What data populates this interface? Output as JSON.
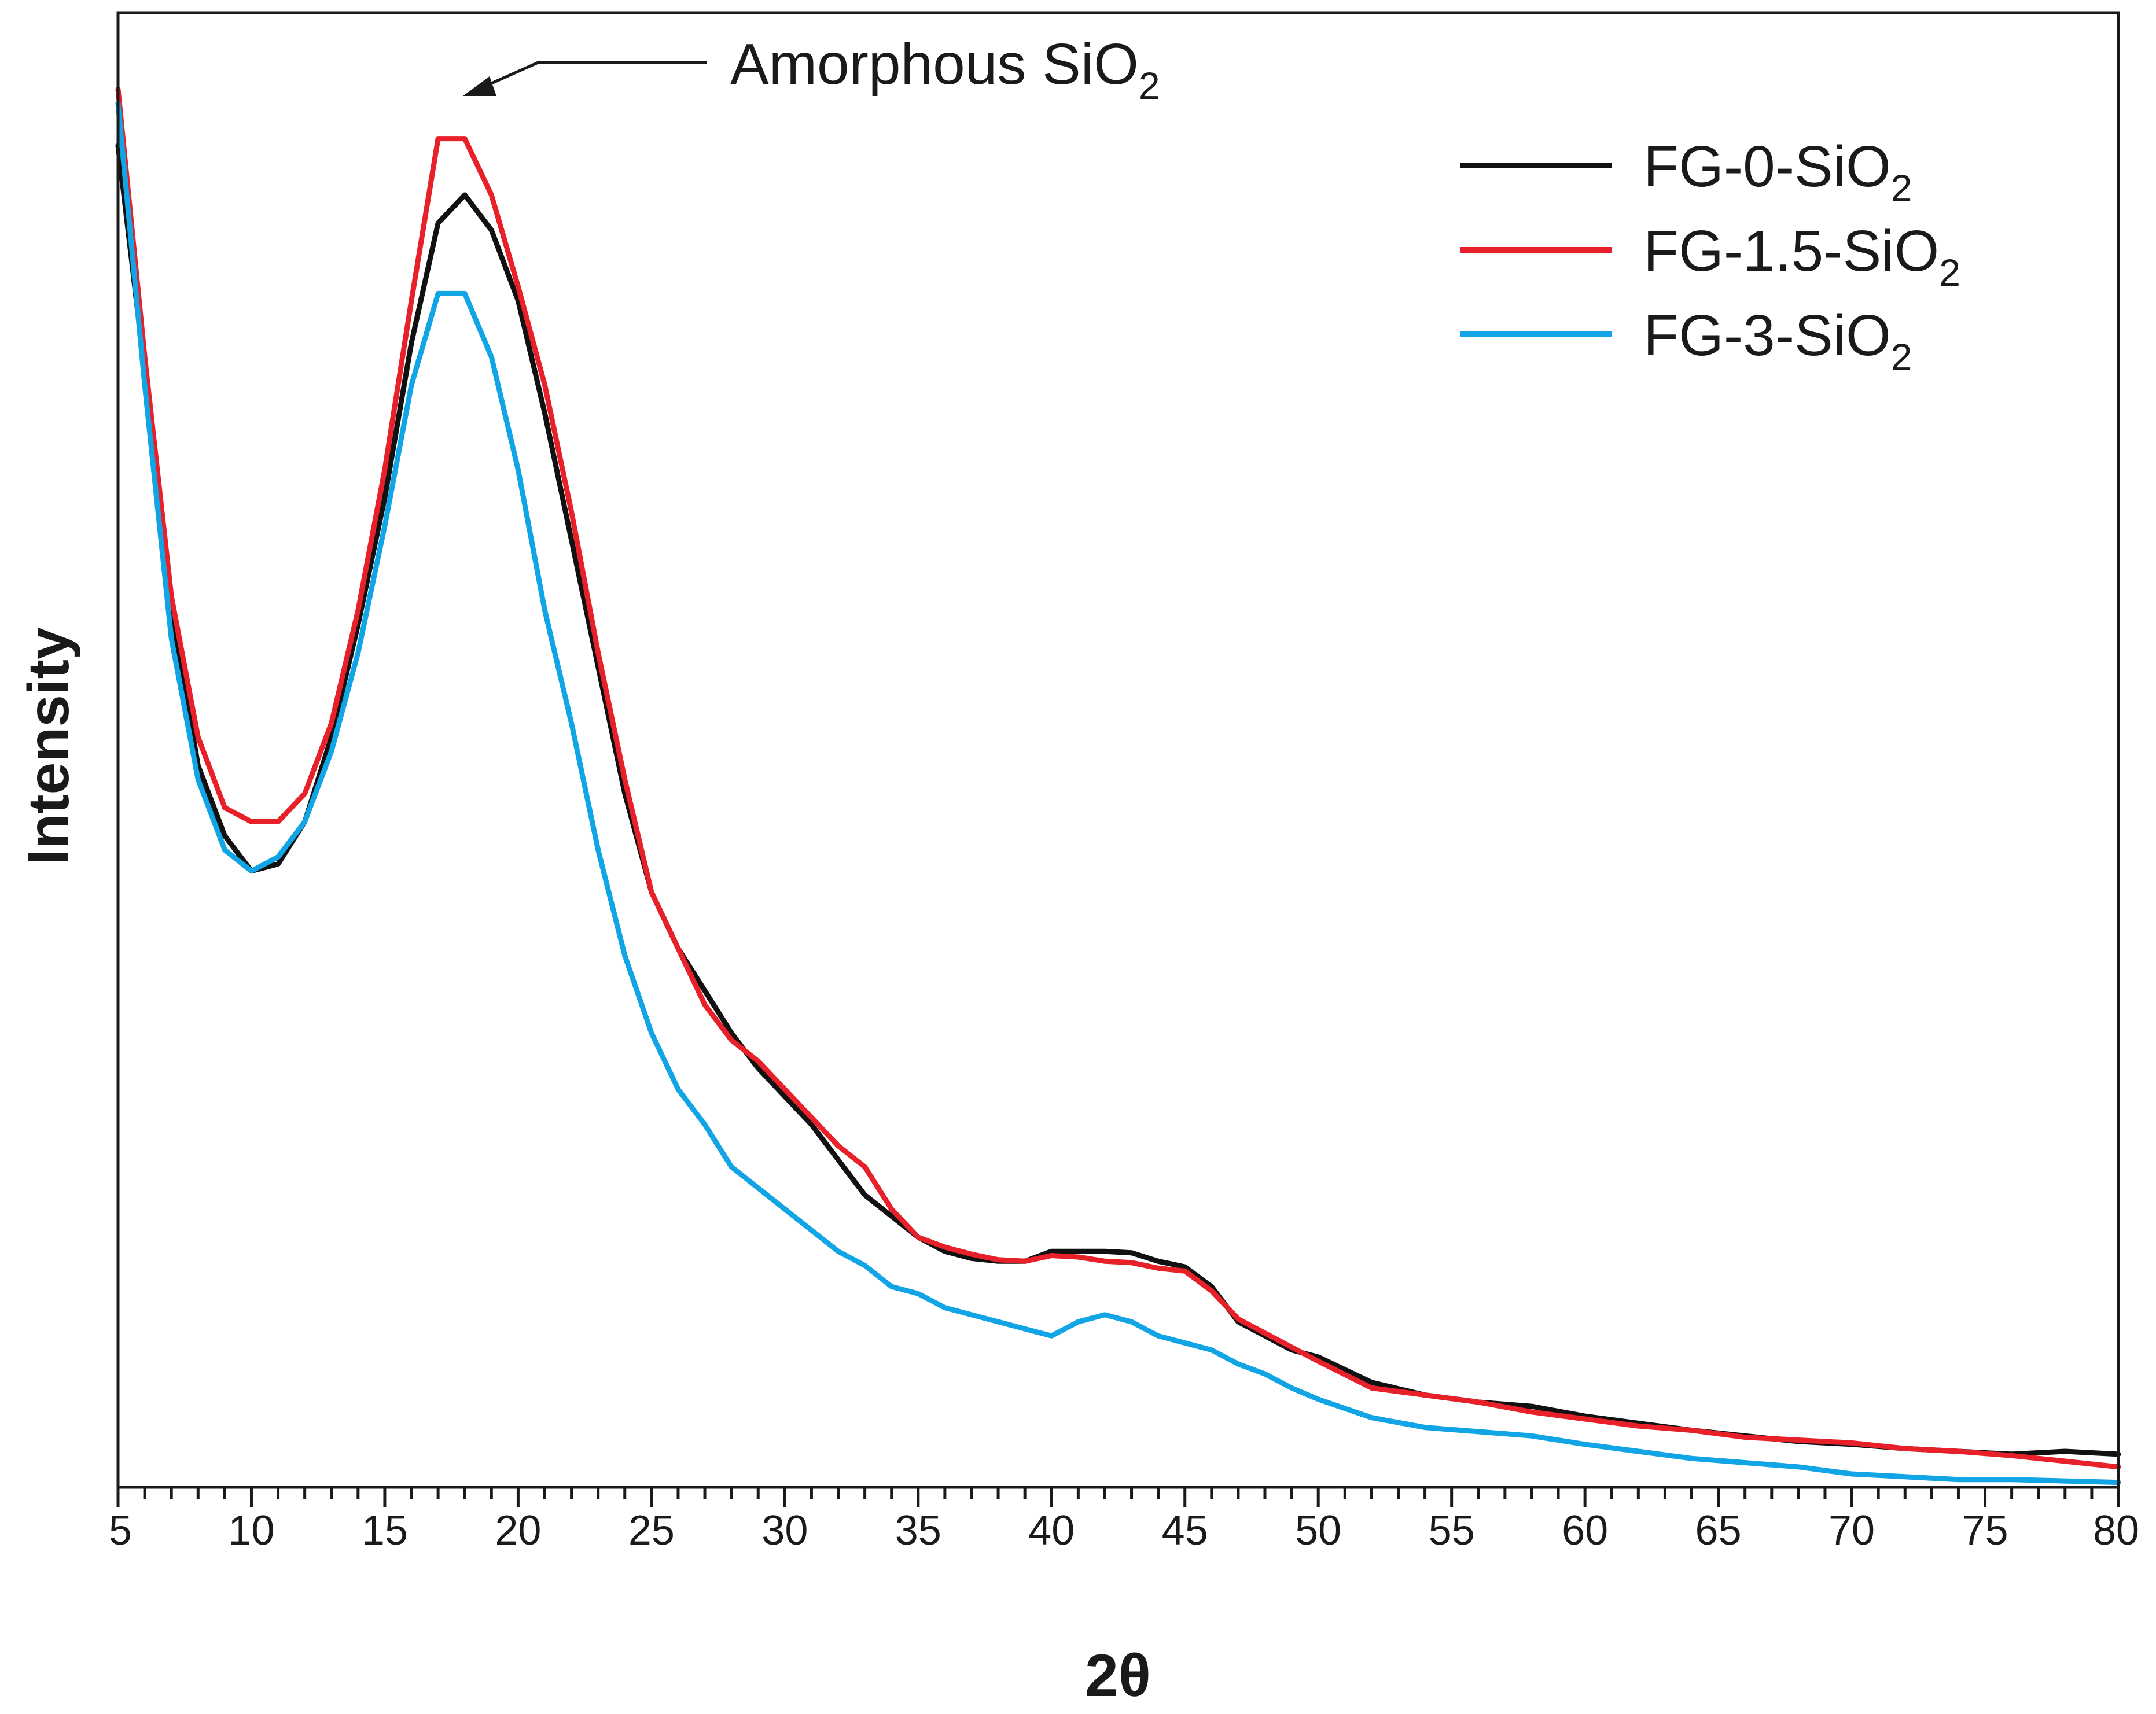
{
  "chart_data": {
    "type": "line",
    "title": "",
    "xlabel": "2θ",
    "ylabel": "Intensity",
    "xlim": [
      5,
      80
    ],
    "ylim": [
      0,
      100
    ],
    "xticks": [
      5,
      10,
      15,
      20,
      25,
      30,
      35,
      40,
      45,
      50,
      55,
      60,
      65,
      70,
      75,
      80
    ],
    "xtick_labels": [
      "5",
      "10",
      "15",
      "20",
      "25",
      "30",
      "35",
      "40",
      "45",
      "50",
      "55",
      "60",
      "65",
      "70",
      "75",
      "80"
    ],
    "yticks_shown": false,
    "grid": false,
    "legend_position": "top-right",
    "annotation": {
      "text": "Amorphous SiO",
      "subscript": "2",
      "points_to_x": 18,
      "points_to_y": 95
    },
    "series": [
      {
        "name": "FG-0-SiO",
        "subscript": "2",
        "color": "#111111",
        "x": [
          5,
          6,
          7,
          8,
          9,
          10,
          11,
          12,
          13,
          14,
          15,
          16,
          17,
          18,
          19,
          20,
          21,
          22,
          23,
          24,
          25,
          26,
          27,
          28,
          29,
          30,
          31,
          32,
          33,
          34,
          35,
          36,
          37,
          38,
          39,
          40,
          41,
          42,
          43,
          44,
          45,
          46,
          47,
          48,
          49,
          50,
          52,
          54,
          56,
          58,
          60,
          62,
          64,
          66,
          68,
          70,
          72,
          74,
          76,
          78,
          80
        ],
        "y": [
          95,
          79,
          62,
          51,
          46,
          43.5,
          44,
          47,
          53,
          61,
          70,
          81,
          89.5,
          91.5,
          89,
          84,
          76,
          67,
          58,
          49,
          42,
          38,
          35,
          32,
          29.5,
          27.5,
          25.5,
          23,
          20.5,
          19,
          17.5,
          16.5,
          16,
          15.8,
          15.8,
          16.5,
          16.5,
          16.5,
          16.4,
          15.8,
          15.4,
          14,
          11.5,
          10.5,
          9.5,
          9,
          7.2,
          6.3,
          5.8,
          5.5,
          4.8,
          4.3,
          3.8,
          3.4,
          3,
          2.8,
          2.5,
          2.3,
          2.1,
          2.3,
          2.1
        ]
      },
      {
        "name": "FG-1.5-SiO",
        "subscript": "2",
        "color": "#e8202a",
        "x": [
          5,
          6,
          7,
          8,
          9,
          10,
          11,
          12,
          13,
          14,
          15,
          16,
          17,
          18,
          19,
          20,
          21,
          22,
          23,
          24,
          25,
          26,
          27,
          28,
          29,
          30,
          31,
          32,
          33,
          34,
          35,
          36,
          37,
          38,
          39,
          40,
          41,
          42,
          43,
          44,
          45,
          46,
          47,
          48,
          49,
          50,
          52,
          54,
          56,
          58,
          60,
          62,
          64,
          66,
          68,
          70,
          72,
          74,
          76,
          78,
          80
        ],
        "y": [
          99,
          80,
          63,
          53,
          48,
          47,
          47,
          49,
          54,
          62,
          72,
          84,
          95.5,
          95.5,
          91.5,
          85,
          78,
          69,
          59,
          50,
          42,
          38,
          34,
          31.5,
          30,
          28,
          26,
          24,
          22.5,
          19.5,
          17.5,
          16.8,
          16.3,
          15.9,
          15.8,
          16.2,
          16.1,
          15.8,
          15.7,
          15.3,
          15.1,
          13.7,
          11.7,
          10.7,
          9.7,
          8.7,
          6.8,
          6.3,
          5.8,
          5.1,
          4.6,
          4.1,
          3.8,
          3.3,
          3.1,
          2.9,
          2.5,
          2.3,
          2,
          1.6,
          1.2
        ]
      },
      {
        "name": "FG-3-SiO",
        "subscript": "2",
        "color": "#11a5e6",
        "x": [
          5,
          6,
          7,
          8,
          9,
          10,
          11,
          12,
          13,
          14,
          15,
          16,
          17,
          18,
          19,
          20,
          21,
          22,
          23,
          24,
          25,
          26,
          27,
          28,
          29,
          30,
          31,
          32,
          33,
          34,
          35,
          36,
          37,
          38,
          39,
          40,
          41,
          42,
          43,
          44,
          45,
          46,
          47,
          48,
          49,
          50,
          52,
          54,
          56,
          58,
          60,
          62,
          64,
          66,
          68,
          70,
          72,
          74,
          76,
          78,
          80
        ],
        "y": [
          98,
          78,
          60,
          50,
          45,
          43.5,
          44.5,
          47,
          52,
          59,
          68,
          78,
          84.5,
          84.5,
          80,
          72,
          62,
          54,
          45,
          37.5,
          32,
          28,
          25.5,
          22.5,
          21,
          19.5,
          18,
          16.5,
          15.5,
          14,
          13.5,
          12.5,
          12,
          11.5,
          11,
          10.5,
          11.5,
          12,
          11.5,
          10.5,
          10,
          9.5,
          8.5,
          7.8,
          6.8,
          6,
          4.7,
          4,
          3.7,
          3.4,
          2.8,
          2.3,
          1.8,
          1.5,
          1.2,
          0.7,
          0.5,
          0.3,
          0.3,
          0.2,
          0.1
        ]
      }
    ]
  }
}
